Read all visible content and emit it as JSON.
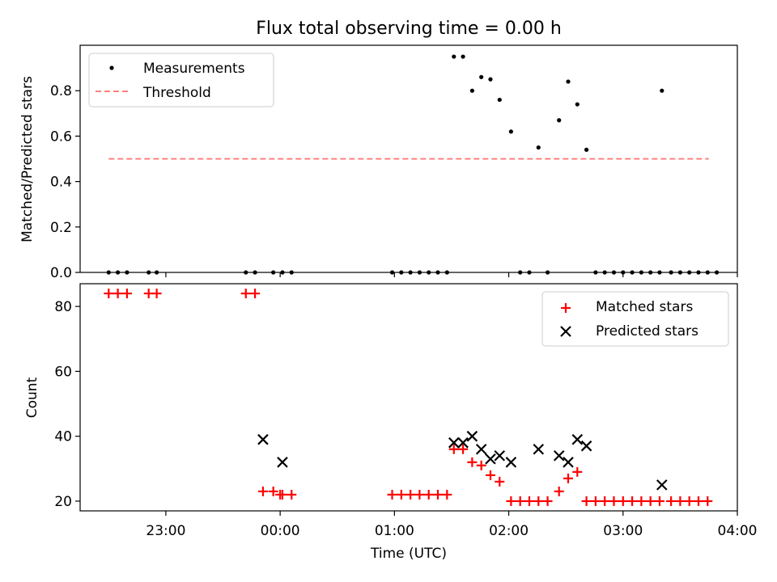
{
  "chart_data": [
    {
      "type": "scatter",
      "title": "Flux total observing time = 0.00 h",
      "xlabel": "",
      "ylabel": "Matched/Predicted stars",
      "xlim": [
        -1.75,
        4.0
      ],
      "ylim": [
        0.0,
        1.0
      ],
      "y_ticks": [
        0.0,
        0.2,
        0.4,
        0.6,
        0.8
      ],
      "y_tick_labels": [
        "0.0",
        "0.2",
        "0.4",
        "0.6",
        "0.8"
      ],
      "x_ticks": [
        -1.0,
        0.0,
        1.0,
        2.0,
        3.0,
        4.0
      ],
      "x_tick_labels": [
        "",
        "",
        "",
        "",
        "",
        ""
      ],
      "legend": [
        {
          "label": "Measurements",
          "marker": "dot",
          "color": "#000000"
        },
        {
          "label": "Threshold",
          "marker": "dashed-line",
          "color": "#ff7f7f"
        }
      ],
      "legend_position": "top-left",
      "threshold": {
        "y": 0.5,
        "x_start": -1.5,
        "x_end": 3.75,
        "color": "#ff7f7f"
      },
      "series": [
        {
          "name": "Measurements",
          "color": "#000000",
          "x": [
            -1.5,
            -1.42,
            -1.34,
            -1.15,
            -1.08,
            -0.3,
            -0.22,
            -0.06,
            0.02,
            0.1,
            0.98,
            1.06,
            1.14,
            1.22,
            1.3,
            1.38,
            1.46,
            1.52,
            1.6,
            1.68,
            1.76,
            1.84,
            1.92,
            2.02,
            2.1,
            2.18,
            2.26,
            2.34,
            2.44,
            2.52,
            2.6,
            2.68,
            2.76,
            2.84,
            2.92,
            3.0,
            3.08,
            3.16,
            3.24,
            3.32,
            3.34,
            3.42,
            3.5,
            3.58,
            3.66,
            3.74,
            3.82
          ],
          "y": [
            0,
            0,
            0,
            0,
            0,
            0,
            0,
            0,
            0,
            0,
            0,
            0,
            0,
            0,
            0,
            0,
            0,
            0.95,
            0.95,
            0.8,
            0.86,
            0.85,
            0.76,
            0.62,
            0,
            0,
            0.55,
            0,
            0.67,
            0.84,
            0.74,
            0.54,
            0,
            0,
            0,
            0,
            0,
            0,
            0,
            0,
            0.8,
            0,
            0,
            0,
            0,
            0,
            0
          ]
        }
      ]
    },
    {
      "type": "scatter",
      "title": "",
      "xlabel": "Time (UTC)",
      "ylabel": "Count",
      "xlim": [
        -1.75,
        4.0
      ],
      "ylim": [
        17,
        87
      ],
      "y_ticks": [
        20,
        40,
        60,
        80
      ],
      "y_tick_labels": [
        "20",
        "40",
        "60",
        "80"
      ],
      "x_ticks": [
        -1.0,
        0.0,
        1.0,
        2.0,
        3.0,
        4.0
      ],
      "x_tick_labels": [
        "23:00",
        "00:00",
        "01:00",
        "02:00",
        "03:00",
        "04:00"
      ],
      "legend": [
        {
          "label": "Matched stars",
          "marker": "plus",
          "color": "#ff0000"
        },
        {
          "label": "Predicted stars",
          "marker": "x",
          "color": "#000000"
        }
      ],
      "legend_position": "top-right",
      "series": [
        {
          "name": "Matched stars",
          "color": "#ff0000",
          "x": [
            -1.5,
            -1.42,
            -1.34,
            -1.15,
            -1.08,
            -0.3,
            -0.22,
            -0.15,
            -0.06,
            0.02,
            0.1,
            0.0,
            0.98,
            1.06,
            1.14,
            1.22,
            1.3,
            1.38,
            1.46,
            1.52,
            1.6,
            1.68,
            1.76,
            1.84,
            1.92,
            2.02,
            2.1,
            2.18,
            2.26,
            2.34,
            2.44,
            2.52,
            2.6,
            2.68,
            2.76,
            2.84,
            2.92,
            3.0,
            3.08,
            3.16,
            3.24,
            3.32,
            3.42,
            3.5,
            3.58,
            3.66,
            3.74
          ],
          "y": [
            84,
            84,
            84,
            84,
            84,
            84,
            84,
            23,
            23,
            22,
            22,
            22,
            22,
            22,
            22,
            22,
            22,
            22,
            22,
            36,
            36,
            32,
            31,
            28,
            26,
            20,
            20,
            20,
            20,
            20,
            23,
            27,
            29,
            20,
            20,
            20,
            20,
            20,
            20,
            20,
            20,
            20,
            20,
            20,
            20,
            20,
            20
          ]
        },
        {
          "name": "Predicted stars",
          "color": "#000000",
          "x": [
            -0.15,
            0.02,
            1.52,
            1.6,
            1.68,
            1.76,
            1.84,
            1.92,
            2.02,
            2.26,
            2.44,
            2.52,
            2.6,
            2.68,
            3.34
          ],
          "y": [
            39,
            32,
            38,
            38,
            40,
            36,
            33,
            34,
            32,
            36,
            34,
            32,
            39,
            37,
            25
          ]
        }
      ]
    }
  ]
}
